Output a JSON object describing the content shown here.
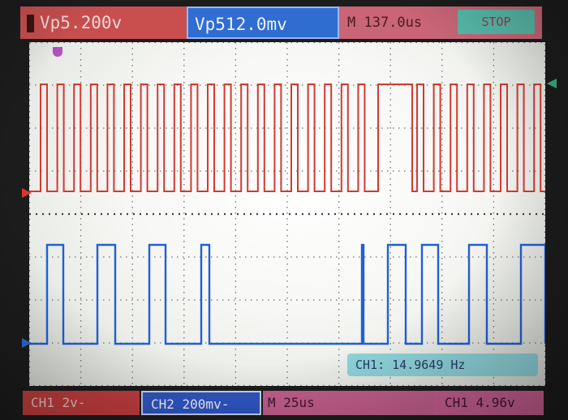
{
  "status_bar": {
    "ch1_scale": "Vp5.200v",
    "ch2_scale": "Vp512.0mv",
    "timebase": "M  137.0us",
    "run_state": "STOP"
  },
  "measurement": {
    "readout": "CH1: 14.9649 Hz"
  },
  "bottom_bar": {
    "ch1_coupling": "CH1 2v-",
    "ch2_coupling": "CH2 200mv-",
    "timebase": "M 25us",
    "trigger": "CH1 4.96v"
  },
  "colors": {
    "ch1_trace": "#d23a32",
    "ch2_trace": "#1f5fd8",
    "grid": "#6f7370",
    "stop_button": "#57b9a9",
    "trigger_marker": "#3fae7a"
  },
  "icons": {
    "ch1_marker": "right-triangle-icon",
    "ch2_marker": "right-triangle-icon",
    "trigger_level_marker": "left-triangle-icon",
    "trigger_position_marker": "down-pointer-icon"
  }
}
